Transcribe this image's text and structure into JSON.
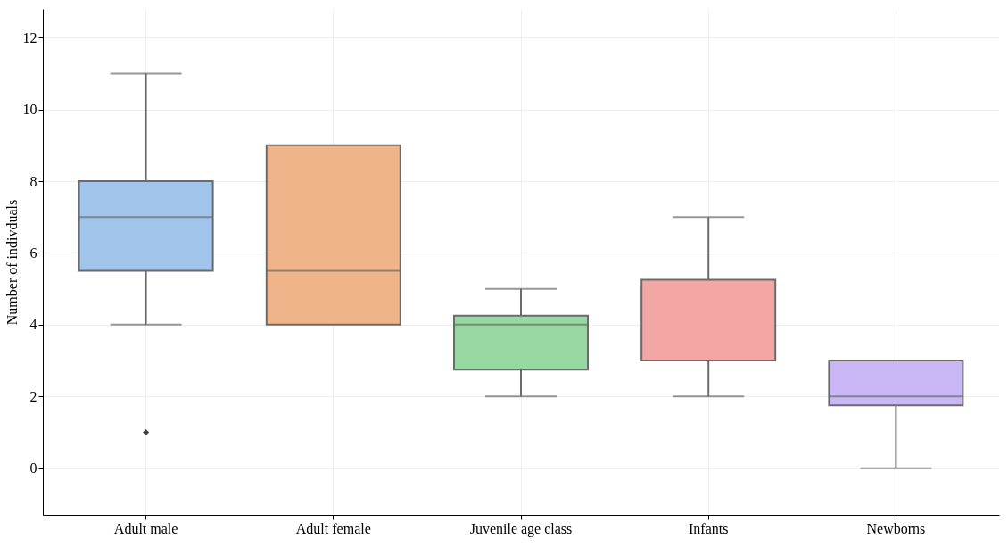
{
  "chart_data": {
    "type": "box",
    "ylabel": "Number of indivduals",
    "categories": [
      "Adult male",
      "Adult female",
      "Juvenile age class",
      "Infants",
      "Newborns"
    ],
    "colors": [
      "#a1c4ea",
      "#f0b48a",
      "#96d8a0",
      "#f2a7a5",
      "#c9b6f5"
    ],
    "boxes": [
      {
        "low": 4,
        "q1": 5.5,
        "median": 7,
        "q3": 8,
        "high": 11,
        "outliers": [
          1
        ]
      },
      {
        "low": 4,
        "q1": 4,
        "median": 5.5,
        "q3": 9,
        "high": 9
      },
      {
        "low": 2,
        "q1": 2.75,
        "median": 4,
        "q3": 4.25,
        "high": 5
      },
      {
        "low": 2,
        "q1": 3,
        "median": 3,
        "q3": 5.25,
        "high": 7
      },
      {
        "low": 0,
        "q1": 1.75,
        "median": 2,
        "q3": 3,
        "high": 3
      }
    ],
    "ylim": [
      -1.3,
      12.8
    ],
    "yticks": [
      0,
      2,
      4,
      6,
      8,
      10,
      12
    ],
    "grid": true,
    "marker": "diamond"
  }
}
